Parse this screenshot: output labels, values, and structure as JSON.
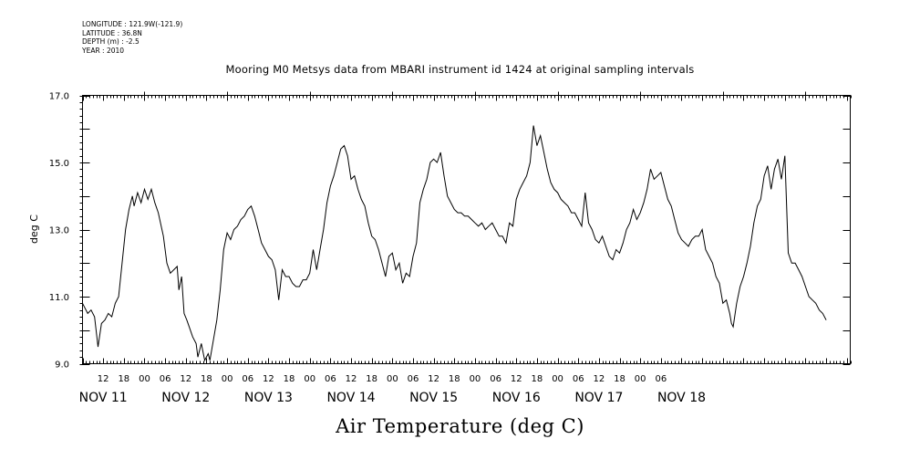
{
  "meta": {
    "longitude": "LONGITUDE : 121.9W(-121.9)",
    "latitude": "LATITUDE : 36.8N",
    "depth": "DEPTH (m) : -2.5",
    "year": "YEAR : 2010"
  },
  "chart_data": {
    "type": "line",
    "title": "Mooring M0 Metsys data from MBARI instrument id 1424 at original sampling intervals",
    "xlabel": "Air Temperature (deg C)",
    "ylabel": "deg C",
    "ylim": [
      9.0,
      17.0
    ],
    "yticks": [
      "9.0",
      "11.0",
      "13.0",
      "15.0",
      "17.0"
    ],
    "xrange_hours": [
      6.0,
      229.0
    ],
    "x_start": "NOV 11 06:00",
    "hour_tick_labels": [
      "12",
      "18",
      "00",
      "06",
      "12",
      "18",
      "00",
      "06",
      "12",
      "18",
      "00",
      "06",
      "12",
      "18",
      "00",
      "06",
      "12",
      "18",
      "00",
      "06",
      "12",
      "18",
      "00",
      "06",
      "12",
      "18",
      "00",
      "06"
    ],
    "day_labels": [
      "NOV 11",
      "NOV 12",
      "NOV 13",
      "NOV 14",
      "NOV 15",
      "NOV 16",
      "NOV 17",
      "NOV 18"
    ],
    "grid": false,
    "series": [
      {
        "name": "",
        "points": [
          [
            6.0,
            10.8
          ],
          [
            7.5,
            10.5
          ],
          [
            8.5,
            10.6
          ],
          [
            9.5,
            10.4
          ],
          [
            10.5,
            9.5
          ],
          [
            11.5,
            10.2
          ],
          [
            12.5,
            10.3
          ],
          [
            13.5,
            10.5
          ],
          [
            14.5,
            10.4
          ],
          [
            15.5,
            10.8
          ],
          [
            16.5,
            11.0
          ],
          [
            17.5,
            12.0
          ],
          [
            18.5,
            13.0
          ],
          [
            19.5,
            13.6
          ],
          [
            20.5,
            14.0
          ],
          [
            21.0,
            13.7
          ],
          [
            22.0,
            14.1
          ],
          [
            23.0,
            13.8
          ],
          [
            24.0,
            14.2
          ],
          [
            25.0,
            13.9
          ],
          [
            26.0,
            14.2
          ],
          [
            27.0,
            13.8
          ],
          [
            28.0,
            13.5
          ],
          [
            29.5,
            12.8
          ],
          [
            30.5,
            12.0
          ],
          [
            31.5,
            11.7
          ],
          [
            32.5,
            11.8
          ],
          [
            33.5,
            11.9
          ],
          [
            34.0,
            11.2
          ],
          [
            34.8,
            11.6
          ],
          [
            35.5,
            10.5
          ],
          [
            36.3,
            10.3
          ],
          [
            37.0,
            10.1
          ],
          [
            38.0,
            9.8
          ],
          [
            39.0,
            9.6
          ],
          [
            39.5,
            9.2
          ],
          [
            40.5,
            9.6
          ],
          [
            41.5,
            9.1
          ],
          [
            42.5,
            9.3
          ],
          [
            43.0,
            9.1
          ],
          [
            44.0,
            9.7
          ],
          [
            45.0,
            10.3
          ],
          [
            46.0,
            11.2
          ],
          [
            47.0,
            12.4
          ],
          [
            48.0,
            12.9
          ],
          [
            49.0,
            12.7
          ],
          [
            50.0,
            13.0
          ],
          [
            51.0,
            13.1
          ],
          [
            52.0,
            13.3
          ],
          [
            53.0,
            13.4
          ],
          [
            54.0,
            13.6
          ],
          [
            55.0,
            13.7
          ],
          [
            56.0,
            13.4
          ],
          [
            57.0,
            13.0
          ],
          [
            58.0,
            12.6
          ],
          [
            59.0,
            12.4
          ],
          [
            60.0,
            12.2
          ],
          [
            61.0,
            12.1
          ],
          [
            62.0,
            11.8
          ],
          [
            63.0,
            10.9
          ],
          [
            64.0,
            11.8
          ],
          [
            65.0,
            11.6
          ],
          [
            66.0,
            11.6
          ],
          [
            67.0,
            11.4
          ],
          [
            68.0,
            11.3
          ],
          [
            69.0,
            11.3
          ],
          [
            70.0,
            11.5
          ],
          [
            71.0,
            11.5
          ],
          [
            72.0,
            11.7
          ],
          [
            73.0,
            12.4
          ],
          [
            74.0,
            11.8
          ],
          [
            75.0,
            12.4
          ],
          [
            76.0,
            13.0
          ],
          [
            77.0,
            13.8
          ],
          [
            78.0,
            14.3
          ],
          [
            79.0,
            14.6
          ],
          [
            80.0,
            15.0
          ],
          [
            81.0,
            15.4
          ],
          [
            82.0,
            15.5
          ],
          [
            83.0,
            15.2
          ],
          [
            84.0,
            14.5
          ],
          [
            85.0,
            14.6
          ],
          [
            86.0,
            14.2
          ],
          [
            87.0,
            13.9
          ],
          [
            88.0,
            13.7
          ],
          [
            89.0,
            13.2
          ],
          [
            90.0,
            12.8
          ],
          [
            91.0,
            12.7
          ],
          [
            92.0,
            12.4
          ],
          [
            93.0,
            12.0
          ],
          [
            94.0,
            11.6
          ],
          [
            95.0,
            12.2
          ],
          [
            96.0,
            12.3
          ],
          [
            97.0,
            11.8
          ],
          [
            98.0,
            12.0
          ],
          [
            99.0,
            11.4
          ],
          [
            100.0,
            11.7
          ],
          [
            101.0,
            11.6
          ],
          [
            102.0,
            12.2
          ],
          [
            103.0,
            12.6
          ],
          [
            104.0,
            13.8
          ],
          [
            105.0,
            14.2
          ],
          [
            106.0,
            14.5
          ],
          [
            107.0,
            15.0
          ],
          [
            108.0,
            15.1
          ],
          [
            109.0,
            15.0
          ],
          [
            110.0,
            15.3
          ],
          [
            111.0,
            14.6
          ],
          [
            112.0,
            14.0
          ],
          [
            113.0,
            13.8
          ],
          [
            114.0,
            13.6
          ],
          [
            115.0,
            13.5
          ],
          [
            116.0,
            13.5
          ],
          [
            117.0,
            13.4
          ],
          [
            118.0,
            13.4
          ],
          [
            119.0,
            13.3
          ],
          [
            120.0,
            13.2
          ],
          [
            121.0,
            13.1
          ],
          [
            122.0,
            13.2
          ],
          [
            123.0,
            13.0
          ],
          [
            124.0,
            13.1
          ],
          [
            125.0,
            13.2
          ],
          [
            126.0,
            13.0
          ],
          [
            127.0,
            12.8
          ],
          [
            128.0,
            12.8
          ],
          [
            129.0,
            12.6
          ],
          [
            130.0,
            13.2
          ],
          [
            131.0,
            13.1
          ],
          [
            132.0,
            13.9
          ],
          [
            133.0,
            14.2
          ],
          [
            134.0,
            14.4
          ],
          [
            135.0,
            14.6
          ],
          [
            136.0,
            15.0
          ],
          [
            137.0,
            16.1
          ],
          [
            138.0,
            15.5
          ],
          [
            139.0,
            15.8
          ],
          [
            140.0,
            15.3
          ],
          [
            141.0,
            14.8
          ],
          [
            142.0,
            14.4
          ],
          [
            143.0,
            14.2
          ],
          [
            144.0,
            14.1
          ],
          [
            145.0,
            13.9
          ],
          [
            146.0,
            13.8
          ],
          [
            147.0,
            13.7
          ],
          [
            148.0,
            13.5
          ],
          [
            149.0,
            13.5
          ],
          [
            150.0,
            13.3
          ],
          [
            151.0,
            13.1
          ],
          [
            152.0,
            14.1
          ],
          [
            153.0,
            13.2
          ],
          [
            154.0,
            13.0
          ],
          [
            155.0,
            12.7
          ],
          [
            156.0,
            12.6
          ],
          [
            157.0,
            12.8
          ],
          [
            158.0,
            12.5
          ],
          [
            159.0,
            12.2
          ],
          [
            160.0,
            12.1
          ],
          [
            161.0,
            12.4
          ],
          [
            162.0,
            12.3
          ],
          [
            163.0,
            12.6
          ],
          [
            164.0,
            13.0
          ],
          [
            165.0,
            13.2
          ],
          [
            166.0,
            13.6
          ],
          [
            167.0,
            13.3
          ],
          [
            168.0,
            13.5
          ],
          [
            169.0,
            13.8
          ],
          [
            170.0,
            14.2
          ],
          [
            171.0,
            14.8
          ],
          [
            172.0,
            14.5
          ],
          [
            173.0,
            14.6
          ],
          [
            174.0,
            14.7
          ],
          [
            175.0,
            14.3
          ],
          [
            176.0,
            13.9
          ],
          [
            177.0,
            13.7
          ],
          [
            178.0,
            13.3
          ],
          [
            179.0,
            12.9
          ],
          [
            180.0,
            12.7
          ],
          [
            181.0,
            12.6
          ],
          [
            182.0,
            12.5
          ],
          [
            183.0,
            12.7
          ],
          [
            184.0,
            12.8
          ],
          [
            185.0,
            12.8
          ],
          [
            186.0,
            13.0
          ],
          [
            187.0,
            12.4
          ],
          [
            188.0,
            12.2
          ],
          [
            189.0,
            12.0
          ],
          [
            190.0,
            11.6
          ],
          [
            191.0,
            11.4
          ],
          [
            192.0,
            10.8
          ],
          [
            193.0,
            10.9
          ],
          [
            194.0,
            10.5
          ],
          [
            194.5,
            10.2
          ],
          [
            195.0,
            10.1
          ],
          [
            196.0,
            10.8
          ],
          [
            197.0,
            11.3
          ],
          [
            198.0,
            11.6
          ],
          [
            199.0,
            12.0
          ],
          [
            200.0,
            12.5
          ],
          [
            201.0,
            13.2
          ],
          [
            202.0,
            13.7
          ],
          [
            203.0,
            13.9
          ],
          [
            204.0,
            14.6
          ],
          [
            205.0,
            14.9
          ],
          [
            206.0,
            14.2
          ],
          [
            207.0,
            14.8
          ],
          [
            208.0,
            15.1
          ],
          [
            209.0,
            14.5
          ],
          [
            210.0,
            15.2
          ],
          [
            211.0,
            12.3
          ],
          [
            212.0,
            12.0
          ],
          [
            213.0,
            12.0
          ],
          [
            214.0,
            11.8
          ],
          [
            215.0,
            11.6
          ],
          [
            216.0,
            11.3
          ],
          [
            217.0,
            11.0
          ],
          [
            218.0,
            10.9
          ],
          [
            219.0,
            10.8
          ],
          [
            220.0,
            10.6
          ],
          [
            221.0,
            10.5
          ],
          [
            222.0,
            10.3
          ]
        ]
      }
    ]
  }
}
